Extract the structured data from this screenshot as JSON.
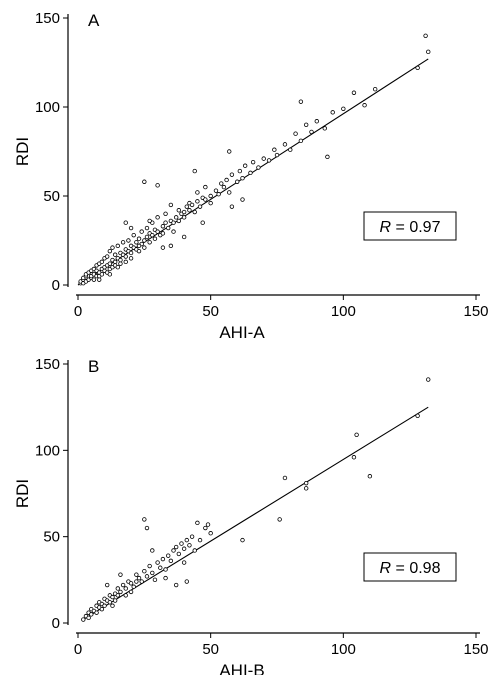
{
  "chart_data": [
    {
      "type": "scatter",
      "panel_label": "A",
      "xlabel": "AHI-A",
      "ylabel": "RDI",
      "xlim": [
        0,
        150
      ],
      "ylim": [
        0,
        150
      ],
      "xticks": [
        0,
        50,
        100,
        150
      ],
      "yticks": [
        0,
        50,
        100,
        150
      ],
      "annotation": {
        "var": "R",
        "text": " = 0.97"
      },
      "fit_line": {
        "x": [
          0,
          132
        ],
        "y": [
          0,
          127
        ]
      },
      "points": [
        [
          1,
          1
        ],
        [
          1,
          2
        ],
        [
          2,
          1
        ],
        [
          2,
          3
        ],
        [
          2,
          4
        ],
        [
          3,
          2
        ],
        [
          3,
          5
        ],
        [
          3,
          6
        ],
        [
          4,
          3
        ],
        [
          4,
          7
        ],
        [
          5,
          4
        ],
        [
          5,
          8
        ],
        [
          5,
          5
        ],
        [
          6,
          6
        ],
        [
          6,
          9
        ],
        [
          6,
          3
        ],
        [
          7,
          5
        ],
        [
          7,
          11
        ],
        [
          7,
          8
        ],
        [
          8,
          7
        ],
        [
          8,
          12
        ],
        [
          8,
          5
        ],
        [
          9,
          9
        ],
        [
          9,
          13
        ],
        [
          9,
          6
        ],
        [
          10,
          8
        ],
        [
          10,
          15
        ],
        [
          10,
          10
        ],
        [
          11,
          11
        ],
        [
          11,
          7
        ],
        [
          11,
          16
        ],
        [
          12,
          12
        ],
        [
          12,
          9
        ],
        [
          12,
          19
        ],
        [
          13,
          14
        ],
        [
          13,
          10
        ],
        [
          13,
          21
        ],
        [
          14,
          13
        ],
        [
          14,
          17
        ],
        [
          14,
          11
        ],
        [
          15,
          15
        ],
        [
          15,
          22
        ],
        [
          16,
          14
        ],
        [
          16,
          18
        ],
        [
          16,
          12
        ],
        [
          17,
          17
        ],
        [
          17,
          24
        ],
        [
          18,
          16
        ],
        [
          18,
          20
        ],
        [
          18,
          13
        ],
        [
          19,
          19
        ],
        [
          19,
          25
        ],
        [
          20,
          18
        ],
        [
          20,
          22
        ],
        [
          20,
          15
        ],
        [
          21,
          21
        ],
        [
          21,
          28
        ],
        [
          22,
          20
        ],
        [
          22,
          24
        ],
        [
          23,
          26
        ],
        [
          23,
          19
        ],
        [
          24,
          23
        ],
        [
          24,
          30
        ],
        [
          25,
          25
        ],
        [
          25,
          21
        ],
        [
          26,
          27
        ],
        [
          26,
          32
        ],
        [
          27,
          24
        ],
        [
          27,
          29
        ],
        [
          28,
          28
        ],
        [
          28,
          35
        ],
        [
          29,
          26
        ],
        [
          29,
          31
        ],
        [
          30,
          30
        ],
        [
          30,
          38
        ],
        [
          31,
          28
        ],
        [
          32,
          33
        ],
        [
          32,
          29
        ],
        [
          33,
          35
        ],
        [
          33,
          40
        ],
        [
          34,
          32
        ],
        [
          35,
          36
        ],
        [
          35,
          45
        ],
        [
          36,
          35
        ],
        [
          36,
          30
        ],
        [
          37,
          38
        ],
        [
          38,
          36
        ],
        [
          38,
          42
        ],
        [
          39,
          40
        ],
        [
          40,
          41
        ],
        [
          40,
          38
        ],
        [
          41,
          44
        ],
        [
          42,
          42
        ],
        [
          42,
          46
        ],
        [
          43,
          45
        ],
        [
          44,
          41
        ],
        [
          45,
          47
        ],
        [
          45,
          52
        ],
        [
          46,
          44
        ],
        [
          47,
          49
        ],
        [
          48,
          48
        ],
        [
          48,
          55
        ],
        [
          50,
          50
        ],
        [
          50,
          46
        ],
        [
          52,
          53
        ],
        [
          53,
          51
        ],
        [
          54,
          57
        ],
        [
          55,
          55
        ],
        [
          56,
          59
        ],
        [
          57,
          52
        ],
        [
          58,
          62
        ],
        [
          60,
          58
        ],
        [
          61,
          64
        ],
        [
          62,
          60
        ],
        [
          63,
          67
        ],
        [
          65,
          63
        ],
        [
          66,
          69
        ],
        [
          68,
          66
        ],
        [
          70,
          71
        ],
        [
          72,
          70
        ],
        [
          74,
          76
        ],
        [
          75,
          73
        ],
        [
          78,
          79
        ],
        [
          80,
          76
        ],
        [
          82,
          85
        ],
        [
          84,
          81
        ],
        [
          86,
          90
        ],
        [
          88,
          86
        ],
        [
          90,
          92
        ],
        [
          93,
          88
        ],
        [
          96,
          97
        ],
        [
          100,
          99
        ],
        [
          104,
          108
        ],
        [
          108,
          101
        ],
        [
          112,
          110
        ],
        [
          128,
          122
        ],
        [
          131,
          140
        ],
        [
          132,
          131
        ],
        [
          25,
          58
        ],
        [
          30,
          56
        ],
        [
          44,
          64
        ],
        [
          57,
          75
        ],
        [
          84,
          103
        ],
        [
          94,
          72
        ],
        [
          18,
          35
        ],
        [
          20,
          32
        ],
        [
          23,
          22
        ],
        [
          15,
          10
        ],
        [
          12,
          6
        ],
        [
          8,
          3
        ],
        [
          27,
          36
        ],
        [
          35,
          22
        ],
        [
          62,
          48
        ],
        [
          58,
          44
        ],
        [
          47,
          35
        ],
        [
          40,
          27
        ],
        [
          32,
          21
        ]
      ]
    },
    {
      "type": "scatter",
      "panel_label": "B",
      "xlabel": "AHI-B",
      "ylabel": "RDI",
      "xlim": [
        0,
        150
      ],
      "ylim": [
        0,
        150
      ],
      "xticks": [
        0,
        50,
        100,
        150
      ],
      "yticks": [
        0,
        50,
        100,
        150
      ],
      "annotation": {
        "var": "R",
        "text": " = 0.98"
      },
      "fit_line": {
        "x": [
          2,
          132
        ],
        "y": [
          2,
          125
        ]
      },
      "points": [
        [
          2,
          2
        ],
        [
          3,
          4
        ],
        [
          4,
          3
        ],
        [
          4,
          6
        ],
        [
          5,
          5
        ],
        [
          5,
          8
        ],
        [
          6,
          7
        ],
        [
          7,
          6
        ],
        [
          7,
          10
        ],
        [
          8,
          9
        ],
        [
          8,
          12
        ],
        [
          9,
          11
        ],
        [
          9,
          8
        ],
        [
          10,
          14
        ],
        [
          10,
          10
        ],
        [
          11,
          13
        ],
        [
          11,
          22
        ],
        [
          12,
          12
        ],
        [
          12,
          16
        ],
        [
          13,
          15
        ],
        [
          13,
          10
        ],
        [
          14,
          17
        ],
        [
          15,
          16
        ],
        [
          15,
          20
        ],
        [
          16,
          18
        ],
        [
          17,
          22
        ],
        [
          18,
          20
        ],
        [
          18,
          16
        ],
        [
          19,
          24
        ],
        [
          20,
          23
        ],
        [
          20,
          18
        ],
        [
          21,
          21
        ],
        [
          22,
          28
        ],
        [
          23,
          26
        ],
        [
          24,
          24
        ],
        [
          25,
          30
        ],
        [
          25,
          60
        ],
        [
          26,
          27
        ],
        [
          26,
          55
        ],
        [
          27,
          33
        ],
        [
          28,
          29
        ],
        [
          29,
          25
        ],
        [
          30,
          35
        ],
        [
          31,
          32
        ],
        [
          32,
          37
        ],
        [
          33,
          31
        ],
        [
          34,
          39
        ],
        [
          35,
          36
        ],
        [
          36,
          42
        ],
        [
          37,
          44
        ],
        [
          38,
          40
        ],
        [
          39,
          46
        ],
        [
          40,
          43
        ],
        [
          40,
          35
        ],
        [
          41,
          48
        ],
        [
          42,
          45
        ],
        [
          43,
          50
        ],
        [
          44,
          42
        ],
        [
          45,
          58
        ],
        [
          46,
          48
        ],
        [
          48,
          55
        ],
        [
          49,
          57
        ],
        [
          50,
          52
        ],
        [
          62,
          48
        ],
        [
          76,
          60
        ],
        [
          78,
          84
        ],
        [
          86,
          78
        ],
        [
          86,
          81
        ],
        [
          104,
          96
        ],
        [
          105,
          109
        ],
        [
          110,
          85
        ],
        [
          128,
          120
        ],
        [
          132,
          141
        ],
        [
          14,
          13
        ],
        [
          16,
          28
        ],
        [
          22,
          24
        ],
        [
          28,
          42
        ],
        [
          33,
          26
        ],
        [
          37,
          22
        ],
        [
          41,
          24
        ]
      ]
    }
  ]
}
